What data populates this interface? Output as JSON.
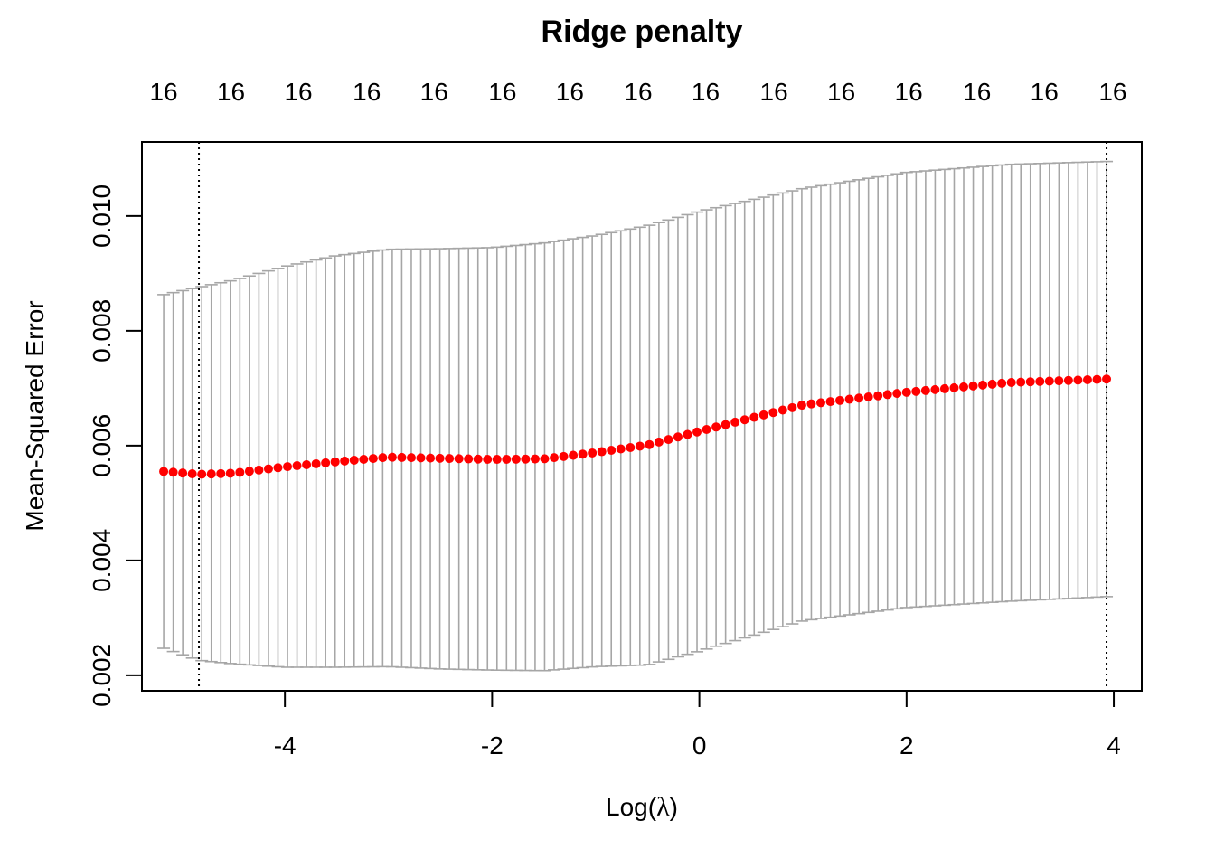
{
  "chart_data": {
    "type": "scatter",
    "title": "Ridge penalty",
    "xlabel_prefix": "Log(",
    "xlabel_symbol": "λ",
    "xlabel_suffix": ")",
    "ylabel": "Mean-Squared Error",
    "xlim": [
      -5.38,
      4.27
    ],
    "ylim": [
      0.00173,
      0.01129
    ],
    "x_ticks": [
      -4,
      -2,
      0,
      2,
      4
    ],
    "x_tick_labels": [
      "-4",
      "-2",
      "0",
      "2",
      "4"
    ],
    "y_ticks": [
      0.002,
      0.004,
      0.006,
      0.008,
      0.01
    ],
    "y_tick_labels": [
      "0.002",
      "0.004",
      "0.006",
      "0.008",
      "0.010"
    ],
    "top_axis": {
      "x": [
        -5.17,
        -4.52,
        -3.87,
        -3.21,
        -2.56,
        -1.9,
        -1.25,
        -0.59,
        0.06,
        0.72,
        1.37,
        2.02,
        2.68,
        3.33,
        3.99
      ],
      "labels": [
        "16",
        "16",
        "16",
        "16",
        "16",
        "16",
        "16",
        "16",
        "16",
        "16",
        "16",
        "16",
        "16",
        "16",
        "16"
      ]
    },
    "vlines": [
      {
        "x": -4.83,
        "style": "dotted"
      },
      {
        "x": 3.93,
        "style": "dotted"
      }
    ],
    "series": [
      {
        "color": "#ff0000",
        "errorbar_color": "#a6a6a6",
        "x_start": 3.93,
        "x_end": -5.17,
        "n_points": 100,
        "y_knots": [
          {
            "x": 3.93,
            "y": 0.00716,
            "lo": 0.00337,
            "hi": 0.01095
          },
          {
            "x": 3.0,
            "y": 0.0071,
            "lo": 0.00329,
            "hi": 0.0109
          },
          {
            "x": 2.0,
            "y": 0.00693,
            "lo": 0.00318,
            "hi": 0.01076
          },
          {
            "x": 1.0,
            "y": 0.00671,
            "lo": 0.00295,
            "hi": 0.01048
          },
          {
            "x": 0.0,
            "y": 0.00625,
            "lo": 0.00242,
            "hi": 0.01008
          },
          {
            "x": -0.5,
            "y": 0.00601,
            "lo": 0.00218,
            "hi": 0.00983
          },
          {
            "x": -1.0,
            "y": 0.00588,
            "lo": 0.00215,
            "hi": 0.00966
          },
          {
            "x": -1.5,
            "y": 0.00577,
            "lo": 0.00208,
            "hi": 0.00953
          },
          {
            "x": -2.0,
            "y": 0.00576,
            "lo": 0.00209,
            "hi": 0.00945
          },
          {
            "x": -2.5,
            "y": 0.00578,
            "lo": 0.00211,
            "hi": 0.00943
          },
          {
            "x": -3.0,
            "y": 0.0058,
            "lo": 0.00215,
            "hi": 0.00942
          },
          {
            "x": -3.5,
            "y": 0.00572,
            "lo": 0.00214,
            "hi": 0.00931
          },
          {
            "x": -4.0,
            "y": 0.00563,
            "lo": 0.00214,
            "hi": 0.00912
          },
          {
            "x": -4.5,
            "y": 0.00552,
            "lo": 0.0022,
            "hi": 0.00888
          },
          {
            "x": -4.83,
            "y": 0.0055,
            "lo": 0.00226,
            "hi": 0.00876
          },
          {
            "x": -5.17,
            "y": 0.00555,
            "lo": 0.00247,
            "hi": 0.00863
          }
        ]
      }
    ]
  }
}
